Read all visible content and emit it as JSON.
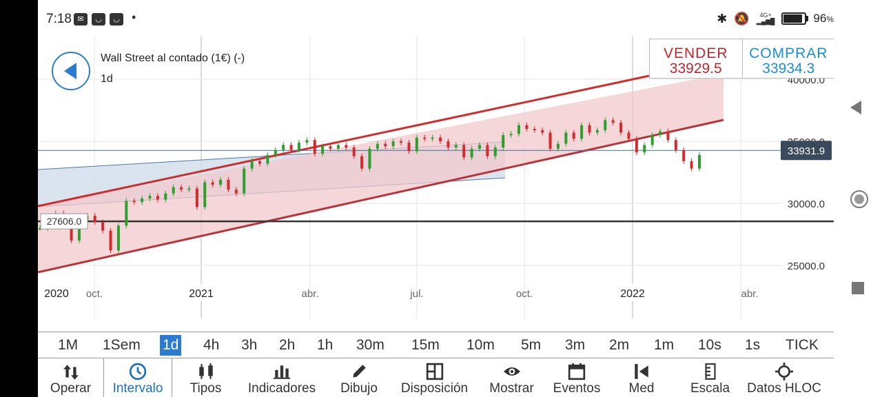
{
  "status": {
    "time": "7:18",
    "network": "4G+",
    "battery_pct": "96",
    "battery_unit": "%",
    "battery_level": 0.96
  },
  "header": {
    "instrument": "Wall Street al contado (1€) (-)",
    "interval": "1d"
  },
  "prices": {
    "sell_label": "VENDER",
    "sell_value": "33929.5",
    "buy_label": "COMPRAR",
    "buy_value": "33934.3"
  },
  "colors": {
    "sell": "#c0262d",
    "buy": "#1a8fd1",
    "accent": "#2b7bd1",
    "up_candle": "#2e9e2e",
    "down_candle": "#d22b2b",
    "red_channel_fill": "#f2c9cc",
    "blue_channel_fill": "#d3dfec",
    "tag_dark": "#3a4a5c"
  },
  "chart_data": {
    "type": "line",
    "ylim": [
      23000,
      42000
    ],
    "y_ticks": [
      "40000.0",
      "35000.0",
      "30000.0",
      "25000.0"
    ],
    "x_labels": [
      "2020",
      "oct.",
      "2021",
      "abr.",
      "jul.",
      "oct.",
      "2022",
      "abr."
    ],
    "current_price_label": "33931.9",
    "current_price": 33931.9,
    "horizontal_line_label": "27606.0",
    "horizontal_line": 27606.0,
    "series": [
      {
        "values": [
          28000,
          28600,
          29200,
          28400,
          27000,
          28600,
          29000,
          28500,
          27800,
          26200,
          28200,
          30200,
          30100,
          30400,
          30600,
          30300,
          30800,
          31300,
          31100,
          31200,
          29700,
          31700,
          31500,
          31900,
          31100,
          30800,
          32800,
          33400,
          33200,
          33900,
          34300,
          34700,
          34300,
          34900,
          35100,
          34000,
          34600,
          34400,
          34700,
          34500,
          33800,
          32800,
          34400,
          34800,
          34600,
          35000,
          34900,
          34200,
          35300,
          35200,
          35300,
          35000,
          34500,
          34700,
          33700,
          34400,
          34700,
          33800,
          34500,
          35500,
          35600,
          36300,
          36000,
          35900,
          35700,
          34400,
          34800,
          35700,
          35200,
          36300,
          35700,
          35900,
          36700,
          36500,
          35700,
          35200,
          34100,
          34700,
          35500,
          35800,
          35100,
          34300,
          33400,
          32800,
          33900
        ]
      }
    ]
  },
  "intervals": [
    "1M",
    "1Sem",
    "1d",
    "4h",
    "3h",
    "2h",
    "1h",
    "30m",
    "15m",
    "10m",
    "5m",
    "3m",
    "2m",
    "1m",
    "10s",
    "1s",
    "TICK"
  ],
  "active_interval": "1d",
  "toolbar": [
    {
      "label": "Operar",
      "icon": "swap-arrows-icon"
    },
    {
      "label": "Intervalo",
      "icon": "clock-icon"
    },
    {
      "label": "Tipos",
      "icon": "candlestick-icon"
    },
    {
      "label": "Indicadores",
      "icon": "bar-chart-icon"
    },
    {
      "label": "Dibujo",
      "icon": "pencil-icon"
    },
    {
      "label": "Disposición",
      "icon": "layout-icon"
    },
    {
      "label": "Mostrar",
      "icon": "eye-icon"
    },
    {
      "label": "Eventos",
      "icon": "calendar-icon"
    },
    {
      "label": "Med",
      "icon": "measure-icon"
    },
    {
      "label": "Escala",
      "icon": "scale-icon"
    },
    {
      "label": "Datos HLOC",
      "icon": "crosshair-icon"
    }
  ],
  "active_tool": "Intervalo"
}
